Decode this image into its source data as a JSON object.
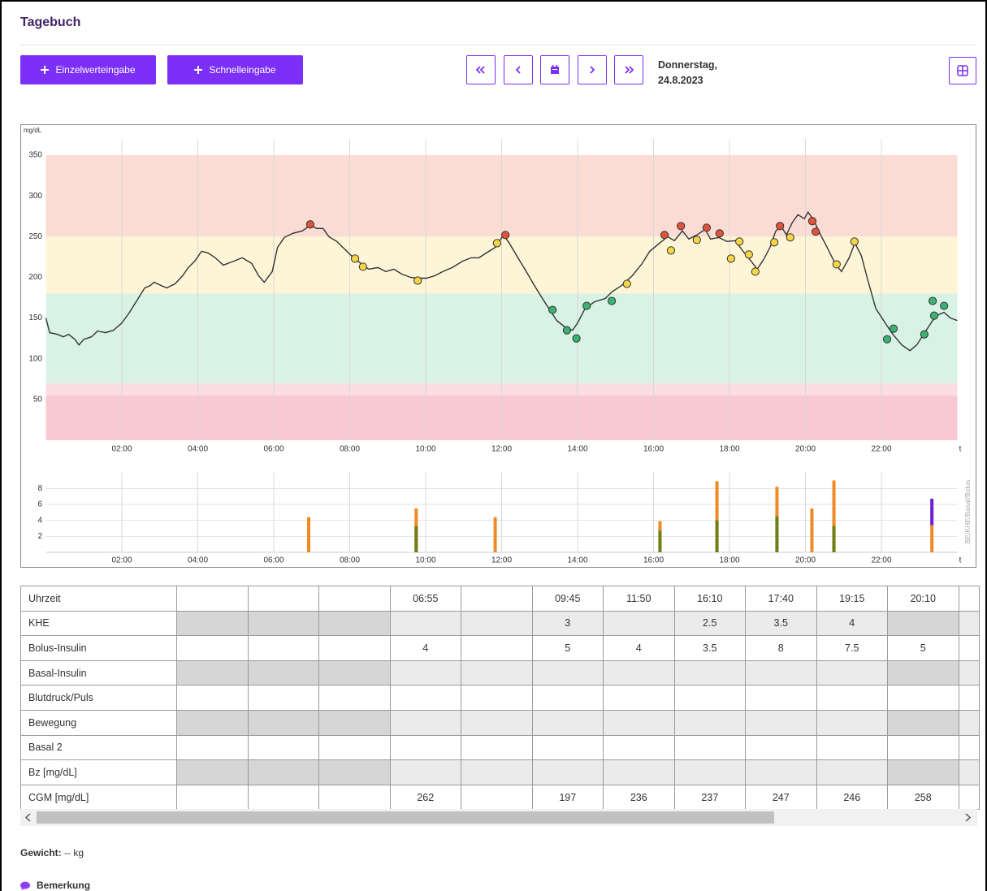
{
  "header": {
    "title": "Tagebuch",
    "buttons": [
      "Einzelwerteingabe",
      "Schnelleingabe"
    ],
    "date": [
      "Donnerstag,",
      "24.8.2023"
    ]
  },
  "chart_data": [
    {
      "type": "line",
      "unit_label": "mg/dL",
      "x_end_label": "t",
      "xlim": [
        0,
        24
      ],
      "xticks": [
        {
          "value": 2,
          "label": "02:00"
        },
        {
          "value": 4,
          "label": "04:00"
        },
        {
          "value": 6,
          "label": "06:00"
        },
        {
          "value": 8,
          "label": "08:00"
        },
        {
          "value": 10,
          "label": "10:00"
        },
        {
          "value": 12,
          "label": "12:00"
        },
        {
          "value": 14,
          "label": "14:00"
        },
        {
          "value": 16,
          "label": "16:00"
        },
        {
          "value": 18,
          "label": "18:00"
        },
        {
          "value": 20,
          "label": "20:00"
        },
        {
          "value": 22,
          "label": "22:00"
        }
      ],
      "ylim": [
        0,
        370
      ],
      "yticks": [
        50,
        100,
        150,
        200,
        250,
        300,
        350
      ],
      "ranges": [
        {
          "from": 250,
          "to": 350,
          "color": "#fbdcd5",
          "dot_color": "#e0533a"
        },
        {
          "from": 180,
          "to": 250,
          "color": "#fdf5d6",
          "dot_color": "#f5d547"
        },
        {
          "from": 70,
          "to": 180,
          "color": "#d9f2e6",
          "dot_color": "#3cb371"
        },
        {
          "from": 55,
          "to": 70,
          "color": "#fbdde4",
          "dot_color": "#f08aa0"
        },
        {
          "from": 0,
          "to": 55,
          "color": "#f8c9d2",
          "dot_color": "#e0533a"
        }
      ],
      "x": [
        0.0,
        0.1,
        0.3,
        0.46,
        0.6,
        0.76,
        0.87,
        1.0,
        1.2,
        1.36,
        1.57,
        1.78,
        2.0,
        2.2,
        2.43,
        2.6,
        2.75,
        2.85,
        3.03,
        3.18,
        3.4,
        3.6,
        3.75,
        3.92,
        4.1,
        4.27,
        4.46,
        4.67,
        4.9,
        5.17,
        5.42,
        5.6,
        5.75,
        5.96,
        6.1,
        6.28,
        6.5,
        6.75,
        6.96,
        7.13,
        7.3,
        7.45,
        7.66,
        7.88,
        8.1,
        8.3,
        8.5,
        8.74,
        8.95,
        9.16,
        9.37,
        9.6,
        9.8,
        10.02,
        10.24,
        10.45,
        10.7,
        10.98,
        11.2,
        11.4,
        11.6,
        11.84,
        12.05,
        12.2,
        12.43,
        12.65,
        12.9,
        13.17,
        13.45,
        13.72,
        13.87,
        14.0,
        14.2,
        14.45,
        14.73,
        14.9,
        15.16,
        15.44,
        15.7,
        15.9,
        16.16,
        16.37,
        16.55,
        16.76,
        16.93,
        17.14,
        17.36,
        17.5,
        17.72,
        17.93,
        18.15,
        18.36,
        18.57,
        18.73,
        18.9,
        19.07,
        19.22,
        19.37,
        19.5,
        19.65,
        19.8,
        19.97,
        20.07,
        20.22,
        20.4,
        20.57,
        20.78,
        20.95,
        21.15,
        21.3,
        21.47,
        21.64,
        21.85,
        22.1,
        22.3,
        22.54,
        22.75,
        22.93,
        23.14,
        23.35,
        23.5,
        23.65,
        23.82,
        24.0
      ],
      "series": [
        {
          "color": "#333333",
          "values": [
            150,
            132,
            130,
            127,
            130,
            124,
            117,
            124,
            127,
            134,
            132,
            135,
            144,
            157,
            174,
            187,
            190,
            194,
            190,
            187,
            192,
            202,
            212,
            220,
            232,
            230,
            224,
            215,
            219,
            224,
            217,
            202,
            194,
            207,
            237,
            249,
            254,
            257,
            264,
            260,
            260,
            250,
            244,
            234,
            224,
            217,
            210,
            212,
            207,
            210,
            204,
            200,
            199,
            199,
            202,
            207,
            212,
            220,
            224,
            224,
            230,
            237,
            252,
            242,
            224,
            207,
            187,
            167,
            147,
            137,
            135,
            144,
            162,
            170,
            174,
            182,
            190,
            202,
            217,
            232,
            242,
            250,
            245,
            257,
            247,
            252,
            259,
            247,
            249,
            244,
            245,
            232,
            220,
            210,
            222,
            237,
            257,
            262,
            252,
            267,
            277,
            272,
            280,
            270,
            252,
            237,
            217,
            207,
            224,
            242,
            227,
            197,
            162,
            144,
            130,
            117,
            110,
            117,
            132,
            147,
            154,
            157,
            150,
            147
          ]
        }
      ],
      "points": {
        "x": [
          6.96,
          8.14,
          8.35,
          9.79,
          11.88,
          12.1,
          13.34,
          13.72,
          13.97,
          14.24,
          14.9,
          15.3,
          16.29,
          16.46,
          16.72,
          17.14,
          17.4,
          17.74,
          18.04,
          18.26,
          18.51,
          18.68,
          19.18,
          19.33,
          19.6,
          20.18,
          20.27,
          20.82,
          21.29,
          22.15,
          22.32,
          23.13,
          23.35,
          23.39,
          23.65
        ],
        "values": [
          265,
          223,
          213,
          196,
          242,
          252,
          160,
          135,
          125,
          165,
          171,
          192,
          252,
          233,
          263,
          246,
          261,
          254,
          223,
          244,
          228,
          207,
          243,
          263,
          249,
          269,
          256,
          216,
          244,
          124,
          137,
          130,
          171,
          153,
          165
        ]
      }
    },
    {
      "type": "bar",
      "axis_label": "BE/KHE/Basal/Bolus",
      "x_end_label": "t",
      "grid": true,
      "xlim": [
        0,
        24
      ],
      "xticks": [
        {
          "value": 2,
          "label": "02:00"
        },
        {
          "value": 4,
          "label": "04:00"
        },
        {
          "value": 6,
          "label": "06:00"
        },
        {
          "value": 8,
          "label": "08:00"
        },
        {
          "value": 10,
          "label": "10:00"
        },
        {
          "value": 12,
          "label": "12:00"
        },
        {
          "value": 14,
          "label": "14:00"
        },
        {
          "value": 16,
          "label": "16:00"
        },
        {
          "value": 18,
          "label": "18:00"
        },
        {
          "value": 20,
          "label": "20:00"
        },
        {
          "value": 22,
          "label": "22:00"
        }
      ],
      "ylim": [
        0,
        10
      ],
      "yticks": [
        2,
        4,
        6,
        8
      ],
      "series": [
        {
          "color": "#f08a24",
          "x": [
            6.92,
            9.75,
            11.83,
            16.17,
            17.67,
            19.25,
            20.17,
            20.75,
            23.33
          ],
          "values": [
            4.4,
            5.5,
            4.4,
            3.9,
            8.9,
            8.2,
            5.5,
            9.0,
            3.4
          ]
        },
        {
          "color": "#6f7f14",
          "x": [
            9.75,
            16.17,
            17.67,
            19.25,
            20.75
          ],
          "values": [
            3.3,
            2.7,
            4.0,
            4.5,
            3.3
          ]
        },
        {
          "color": "#6a1fd1",
          "x": [
            23.33
          ],
          "values": [
            3.3
          ],
          "stacked": true
        }
      ]
    }
  ],
  "table": {
    "header": [
      "Uhrzeit",
      null,
      null,
      null,
      "06:55",
      null,
      "09:45",
      "11:50",
      "16:10",
      "17:40",
      "19:15",
      "20:10"
    ],
    "rows": [
      [
        "KHE",
        null,
        null,
        null,
        null,
        null,
        3,
        null,
        2.5,
        3.5,
        4,
        null
      ],
      [
        "Bolus-Insulin",
        null,
        null,
        null,
        4,
        null,
        5,
        4,
        3.5,
        8,
        7.5,
        5
      ],
      [
        "Basal-Insulin",
        null,
        null,
        null,
        null,
        null,
        null,
        null,
        null,
        null,
        null,
        null
      ],
      [
        "Blutdruck/Puls",
        null,
        null,
        null,
        null,
        null,
        null,
        null,
        null,
        null,
        null,
        null
      ],
      [
        "Bewegung",
        null,
        null,
        null,
        null,
        null,
        null,
        null,
        null,
        null,
        null,
        null
      ],
      [
        "Basal 2",
        null,
        null,
        null,
        null,
        null,
        null,
        null,
        null,
        null,
        null,
        null
      ],
      [
        "Bz [mg/dL]",
        null,
        null,
        null,
        null,
        null,
        null,
        null,
        null,
        null,
        null,
        null
      ],
      [
        "CGM [mg/dL]",
        null,
        null,
        null,
        262,
        null,
        197,
        236,
        237,
        247,
        246,
        258
      ]
    ]
  },
  "footer": {
    "weight_label": "Gewicht:",
    "weight_value": "-- kg",
    "remark": "Bemerkung"
  }
}
